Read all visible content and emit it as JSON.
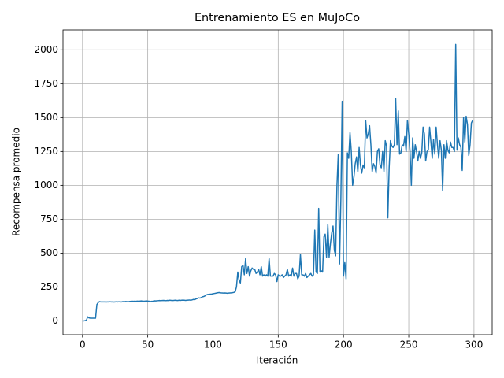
{
  "chart_data": {
    "type": "line",
    "title": "Entrenamiento ES en MuJoCo",
    "xlabel": "Iteración",
    "ylabel": "Recompensa promedio",
    "x": [
      0,
      1,
      2,
      3,
      4,
      5,
      6,
      7,
      8,
      9,
      10,
      11,
      12,
      13,
      14,
      15,
      16,
      17,
      18,
      19,
      20,
      21,
      22,
      23,
      24,
      25,
      26,
      27,
      28,
      29,
      30,
      31,
      32,
      33,
      34,
      35,
      36,
      37,
      38,
      39,
      40,
      41,
      42,
      43,
      44,
      45,
      46,
      47,
      48,
      49,
      50,
      51,
      52,
      53,
      54,
      55,
      56,
      57,
      58,
      59,
      60,
      61,
      62,
      63,
      64,
      65,
      66,
      67,
      68,
      69,
      70,
      71,
      72,
      73,
      74,
      75,
      76,
      77,
      78,
      79,
      80,
      81,
      82,
      83,
      84,
      85,
      86,
      87,
      88,
      89,
      90,
      91,
      92,
      93,
      94,
      95,
      96,
      97,
      98,
      99,
      100,
      101,
      102,
      103,
      104,
      105,
      106,
      107,
      108,
      109,
      110,
      111,
      112,
      113,
      114,
      115,
      116,
      117,
      118,
      119,
      120,
      121,
      122,
      123,
      124,
      125,
      126,
      127,
      128,
      129,
      130,
      131,
      132,
      133,
      134,
      135,
      136,
      137,
      138,
      139,
      140,
      141,
      142,
      143,
      144,
      145,
      146,
      147,
      148,
      149,
      150,
      151,
      152,
      153,
      154,
      155,
      156,
      157,
      158,
      159,
      160,
      161,
      162,
      163,
      164,
      165,
      166,
      167,
      168,
      169,
      170,
      171,
      172,
      173,
      174,
      175,
      176,
      177,
      178,
      179,
      180,
      181,
      182,
      183,
      184,
      185,
      186,
      187,
      188,
      189,
      190,
      191,
      192,
      193,
      194,
      195,
      196,
      197,
      198,
      199,
      200,
      201,
      202,
      203,
      204,
      205,
      206,
      207,
      208,
      209,
      210,
      211,
      212,
      213,
      214,
      215,
      216,
      217,
      218,
      219,
      220,
      221,
      222,
      223,
      224,
      225,
      226,
      227,
      228,
      229,
      230,
      231,
      232,
      233,
      234,
      235,
      236,
      237,
      238,
      239,
      240,
      241,
      242,
      243,
      244,
      245,
      246,
      247,
      248,
      249,
      250,
      251,
      252,
      253,
      254,
      255,
      256,
      257,
      258,
      259,
      260,
      261,
      262,
      263,
      264,
      265,
      266,
      267,
      268,
      269,
      270,
      271,
      272,
      273,
      274,
      275,
      276,
      277,
      278,
      279,
      280,
      281,
      282,
      283,
      284,
      285,
      286,
      287,
      288,
      289,
      290,
      291,
      292,
      293,
      294,
      295,
      296,
      297,
      298,
      299
    ],
    "series": [
      {
        "color": "#1f77b4",
        "values": [
          0,
          0,
          2,
          5,
          30,
          22,
          20,
          20,
          20,
          20,
          20,
          120,
          135,
          142,
          140,
          140,
          140,
          140,
          139,
          140,
          140,
          141,
          140,
          140,
          139,
          140,
          141,
          140,
          141,
          140,
          140,
          142,
          141,
          143,
          142,
          141,
          143,
          144,
          145,
          144,
          145,
          144,
          146,
          145,
          146,
          147,
          146,
          145,
          146,
          147,
          146,
          145,
          142,
          144,
          145,
          148,
          147,
          148,
          149,
          150,
          149,
          150,
          151,
          150,
          149,
          151,
          150,
          152,
          151,
          150,
          151,
          152,
          151,
          150,
          152,
          151,
          152,
          153,
          152,
          151,
          152,
          153,
          154,
          152,
          155,
          158,
          157,
          162,
          165,
          170,
          168,
          172,
          178,
          180,
          185,
          192,
          195,
          196,
          197,
          198,
          200,
          202,
          204,
          206,
          208,
          209,
          207,
          206,
          205,
          206,
          205,
          204,
          205,
          206,
          207,
          208,
          210,
          215,
          250,
          360,
          300,
          280,
          400,
          410,
          340,
          460,
          350,
          400,
          330,
          370,
          390,
          380,
          380,
          350,
          360,
          380,
          340,
          400,
          330,
          340,
          330,
          340,
          330,
          460,
          330,
          330,
          330,
          350,
          340,
          290,
          340,
          330,
          330,
          340,
          320,
          330,
          340,
          380,
          330,
          340,
          330,
          390,
          330,
          350,
          350,
          310,
          330,
          490,
          340,
          340,
          330,
          350,
          320,
          330,
          340,
          350,
          330,
          340,
          670,
          360,
          350,
          830,
          360,
          370,
          360,
          620,
          640,
          470,
          710,
          470,
          570,
          650,
          700,
          520,
          480,
          1000,
          1230,
          420,
          900,
          1620,
          330,
          430,
          310,
          1240,
          1200,
          1390,
          1250,
          1000,
          1060,
          1160,
          1210,
          1100,
          1280,
          1150,
          1090,
          1150,
          1130,
          1480,
          1350,
          1380,
          1440,
          1300,
          1100,
          1160,
          1140,
          1090,
          1250,
          1270,
          1150,
          1130,
          1250,
          1100,
          1330,
          1290,
          760,
          1130,
          1330,
          1290,
          1280,
          1300,
          1640,
          1300,
          1550,
          1230,
          1240,
          1300,
          1290,
          1360,
          1250,
          1480,
          1380,
          1250,
          1000,
          1350,
          1200,
          1300,
          1250,
          1180,
          1250,
          1200,
          1240,
          1430,
          1380,
          1180,
          1250,
          1260,
          1430,
          1320,
          1200,
          1340,
          1230,
          1430,
          1300,
          1200,
          1330,
          1260,
          960,
          1300,
          1200,
          1330,
          1260,
          1240,
          1320,
          1280,
          1280,
          1250,
          2040,
          1260,
          1350,
          1300,
          1280,
          1110,
          1500,
          1320,
          1510,
          1450,
          1220,
          1300,
          1460,
          1480
        ]
      }
    ],
    "xlim": [
      -14.95,
      313.95
    ],
    "ylim": [
      -102,
      2147
    ],
    "xticks": [
      0,
      50,
      100,
      150,
      200,
      250,
      300
    ],
    "yticks": [
      0,
      250,
      500,
      750,
      1000,
      1250,
      1500,
      1750,
      2000
    ],
    "grid": true
  }
}
